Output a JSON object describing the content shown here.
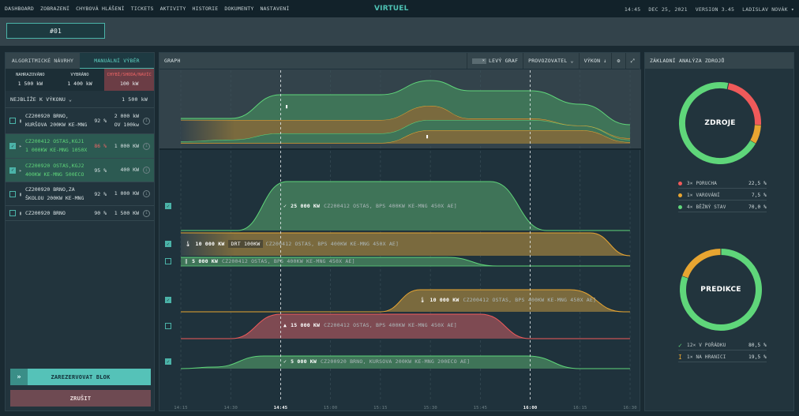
{
  "nav": {
    "items": [
      "DASHBOARD",
      "ZOBRAZENÍ",
      "CHYBOVÁ HLÁŠENÍ",
      "TICKETS",
      "AKTIVITY",
      "HISTORIE",
      "DOKUMENTY",
      "NASTAVENÍ"
    ],
    "brand": "VIRTUEL",
    "time": "14:45",
    "date": "DEC 25, 2021",
    "version": "VERSION 3.45",
    "user": "LADISLAV NOVÁK ▾"
  },
  "block": {
    "label": "#01"
  },
  "left": {
    "tabs": [
      "ALGORITMICKÉ NÁVRHY",
      "MANUÁLNÍ VÝBĚR"
    ],
    "summary": [
      {
        "label": "NAHRAZOVÁNO",
        "value": "1 500 kW"
      },
      {
        "label": "VYBRÁNO",
        "value": "1 400 kW"
      },
      {
        "label": "CHYBÍ/SHODA/NAVÍC",
        "value": "100 kW"
      }
    ],
    "sort_label": "NEJBLÍŽE K VÝKONU ⌄",
    "sort_value": "1 500 kW",
    "rows": [
      {
        "line1": "CZ200920 BRNO,",
        "line2": "KURŠOVA 200KW KE-MNG",
        "pct": "92 %",
        "power1": "2 000 kW",
        "power2": "OV 100kw",
        "checked": false,
        "icon": "thermometer-icon"
      },
      {
        "line1": "CZ200412 OSTAS,KGJ1",
        "line2": "1 000KW KE-MNG 1050X",
        "pct": "86 %",
        "power1": "1 000 KW",
        "power2": "",
        "checked": true,
        "icon": "play-icon"
      },
      {
        "line1": "CZ200920 OSTAS,KGJ2",
        "line2": "400KW KE-MNG 500ECO",
        "pct": "95 %",
        "power1": "400 KW",
        "power2": "",
        "checked": true,
        "icon": "play-icon"
      },
      {
        "line1": "CZ200920 BRNO,ZA",
        "line2": "ŠKOLOU 200KW KE-MNG",
        "pct": "92 %",
        "power1": "1 000 KW",
        "power2": "",
        "checked": false,
        "icon": "thermometer-icon"
      },
      {
        "line1": "CZ200920 BRNO",
        "line2": "",
        "pct": "90 %",
        "power1": "1 500 KW",
        "power2": "",
        "checked": false,
        "icon": "thermometer-icon"
      }
    ],
    "reserve": "ZAREZERVOVAT BLOK",
    "cancel": "ZRUŠIT"
  },
  "graph": {
    "title": "GRAPH",
    "toggle": "LEVÝ GRAF",
    "operator": "PROVOZOVATEL ⌄",
    "power": "VÝKON ↓",
    "ticks": [
      "14:15",
      "14:30",
      "14:45",
      "15:00",
      "15:15",
      "15:30",
      "15:45",
      "16:00",
      "16:15",
      "16:30"
    ],
    "highlighted_ticks": [
      "14:45",
      "16:00"
    ],
    "lanes": [
      {
        "checked": true,
        "icon": "check-icon",
        "power": "25 000 KW",
        "chip": "",
        "desc": "CZ200412 OSTAS, BPS 400KW KE-MNG 450X AE]",
        "status": "ok"
      },
      {
        "checked": true,
        "icon": "thermometer-icon",
        "power": "10 000 KW",
        "chip": "DRT 100KW",
        "desc": "CZ200412 OSTAS, BPS 400KW KE-MNG 450X AE]",
        "status": "warning"
      },
      {
        "checked": false,
        "icon": "pause-icon",
        "power": "5 000 KW",
        "chip": "",
        "desc": "CZ200412 OSTAS, BPS 400KW KE-MNG 450X AE]",
        "status": "ok"
      },
      {
        "checked": true,
        "icon": "thermometer-icon",
        "power": "10 000 KW",
        "chip": "",
        "desc": "CZ200412 OSTAS, BPS 400KW KE-MNG 450X AE]",
        "status": "warning"
      },
      {
        "checked": false,
        "icon": "warning-icon",
        "power": "15 000 KW",
        "chip": "",
        "desc": "CZ200412 OSTAS, BPS 400KW KE-MNG 450X AE]",
        "status": "error"
      },
      {
        "checked": true,
        "icon": "check-icon",
        "power": "5 000 KW",
        "chip": "",
        "desc": "CZ200920 BRNO, KURSOVA 200KW KE-MNG 200ECO AE]",
        "status": "ok"
      }
    ]
  },
  "right": {
    "title": "ZÁKLADNÍ ANALÝZA ZDROJŮ",
    "sources": {
      "label": "ZDROJE",
      "items": [
        {
          "count": "3×",
          "label": "PORUCHA",
          "pct": "22,5 %",
          "value": 22.5,
          "color": "#f05a5a"
        },
        {
          "count": "1×",
          "label": "VAROVÁNÍ",
          "pct": "7,5 %",
          "value": 7.5,
          "color": "#e8a531"
        },
        {
          "count": "4×",
          "label": "BĚŽNÝ STAV",
          "pct": "70,0 %",
          "value": 70.0,
          "color": "#5fd67a"
        }
      ]
    },
    "prediction": {
      "label": "PREDIKCE",
      "items": [
        {
          "count": "12×",
          "label": "V POŘÁDKU",
          "pct": "80,5 %",
          "value": 80.5,
          "color": "#5fd67a",
          "icon": "check-icon"
        },
        {
          "count": "1×",
          "label": "NA HRANICI",
          "pct": "19,5 %",
          "value": 19.5,
          "color": "#e8a531",
          "icon": "boundary-icon"
        }
      ]
    }
  },
  "colors": {
    "accent": "#4bb3a8",
    "ok": "#5fd67a",
    "warning": "#e8a531",
    "error": "#f05a5a"
  }
}
